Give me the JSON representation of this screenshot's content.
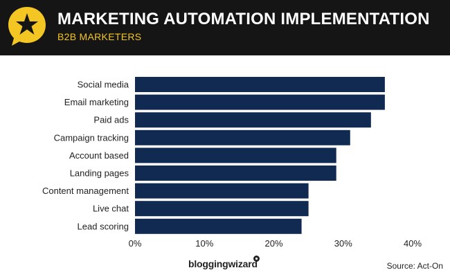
{
  "header": {
    "title": "MARKETING AUTOMATION IMPLEMENTATION",
    "subtitle": "B2B MARKETERS",
    "background_color": "#151515",
    "title_color": "#ffffff",
    "subtitle_color": "#f3c623",
    "logo_icon": "star-speech-bubble-icon"
  },
  "footer": {
    "brand": "bloggingwizard",
    "source": "Source: Act-On"
  },
  "chart_data": {
    "type": "bar",
    "orientation": "horizontal",
    "categories": [
      "Social media",
      "Email marketing",
      "Paid ads",
      "Campaign tracking",
      "Account based",
      "Landing pages",
      "Content management",
      "Live chat",
      "Lead scoring"
    ],
    "values": [
      36,
      36,
      34,
      31,
      29,
      29,
      25,
      25,
      24
    ],
    "xlim": [
      0,
      40
    ],
    "xticks": [
      0,
      10,
      20,
      30,
      40
    ],
    "xtick_labels": [
      "0%",
      "10%",
      "20%",
      "30%",
      "40%"
    ],
    "grid": false,
    "bar_color": "#112a52",
    "title": "MARKETING AUTOMATION IMPLEMENTATION",
    "subtitle": "B2B MARKETERS",
    "xlabel": "",
    "ylabel": ""
  }
}
